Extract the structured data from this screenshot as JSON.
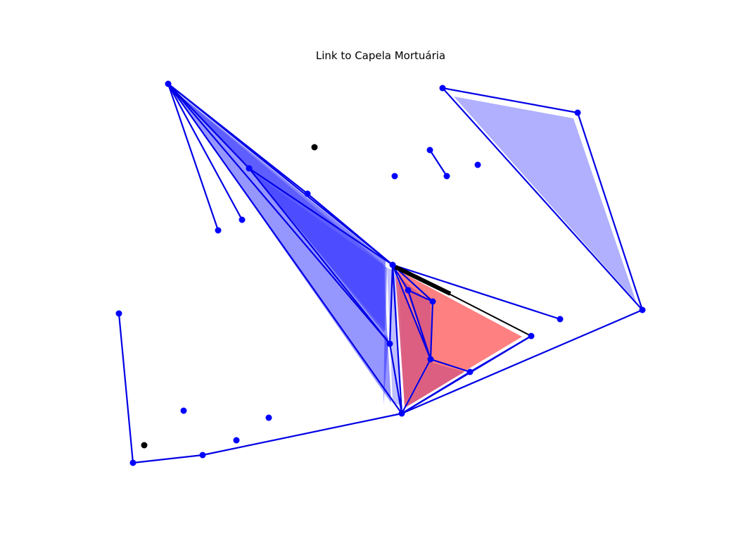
{
  "title": "Link to Capela Mortuária",
  "colors": {
    "edge": "#0000e6",
    "node": "#0000ff",
    "highlight": "#000000",
    "fill_blue": "#4040ff",
    "fill_blue_light": "#b0b0ff",
    "fill_red": "#ff8080",
    "fill_overlap": "#d85a80"
  },
  "nodes": [
    {
      "id": "n01",
      "color": "blue"
    },
    {
      "id": "n02",
      "color": "blue"
    },
    {
      "id": "n03",
      "color": "blue"
    },
    {
      "id": "n04",
      "color": "blue"
    },
    {
      "id": "n05",
      "color": "blue"
    },
    {
      "id": "n06",
      "color": "blue"
    },
    {
      "id": "n07",
      "color": "blue"
    },
    {
      "id": "n08",
      "color": "blue"
    },
    {
      "id": "n09",
      "color": "blue"
    },
    {
      "id": "n10",
      "color": "blue"
    },
    {
      "id": "n11",
      "color": "blue"
    },
    {
      "id": "n12",
      "color": "blue"
    },
    {
      "id": "n13",
      "color": "blue"
    },
    {
      "id": "n14",
      "color": "blue"
    },
    {
      "id": "n15",
      "color": "blue"
    },
    {
      "id": "n16",
      "color": "blue"
    },
    {
      "id": "n17",
      "color": "blue"
    },
    {
      "id": "n18",
      "color": "blue"
    },
    {
      "id": "n19",
      "color": "blue"
    },
    {
      "id": "n20",
      "color": "blue"
    },
    {
      "id": "n21",
      "color": "blue"
    },
    {
      "id": "n22",
      "color": "blue"
    },
    {
      "id": "n23",
      "color": "blue"
    },
    {
      "id": "n24",
      "color": "blue"
    },
    {
      "id": "n25",
      "color": "blue"
    },
    {
      "id": "n26",
      "color": "black"
    },
    {
      "id": "n27",
      "color": "black"
    }
  ],
  "edges": [
    [
      "n01",
      "n05"
    ],
    [
      "n01",
      "n06"
    ],
    [
      "n01",
      "n02"
    ],
    [
      "n01",
      "n03"
    ],
    [
      "n01",
      "n08"
    ],
    [
      "n01",
      "n12"
    ],
    [
      "n01",
      "n04"
    ],
    [
      "n02",
      "n08"
    ],
    [
      "n02",
      "n12"
    ],
    [
      "n03",
      "n08"
    ],
    [
      "n08",
      "n12"
    ],
    [
      "n08",
      "n19"
    ],
    [
      "n08",
      "n10"
    ],
    [
      "n08",
      "n11"
    ],
    [
      "n08",
      "n09"
    ],
    [
      "n08",
      "n13"
    ],
    [
      "n09",
      "n11"
    ],
    [
      "n09",
      "n13"
    ],
    [
      "n10",
      "n11"
    ],
    [
      "n11",
      "n13"
    ],
    [
      "n11",
      "n15"
    ],
    [
      "n13",
      "n15"
    ],
    [
      "n13",
      "n14"
    ],
    [
      "n12",
      "n13"
    ],
    [
      "n13",
      "n16"
    ],
    [
      "n14",
      "n13"
    ],
    [
      "n14",
      "n15"
    ],
    [
      "n13",
      "n17"
    ],
    [
      "n16",
      "n17"
    ],
    [
      "n17",
      "n18"
    ],
    [
      "n20",
      "n21"
    ],
    [
      "n21",
      "n22"
    ],
    [
      "n22",
      "n16"
    ],
    [
      "n23",
      "n24"
    ],
    [
      "n24",
      "n25"
    ]
  ],
  "highlight_edges": [
    [
      "n08",
      "n14"
    ]
  ]
}
